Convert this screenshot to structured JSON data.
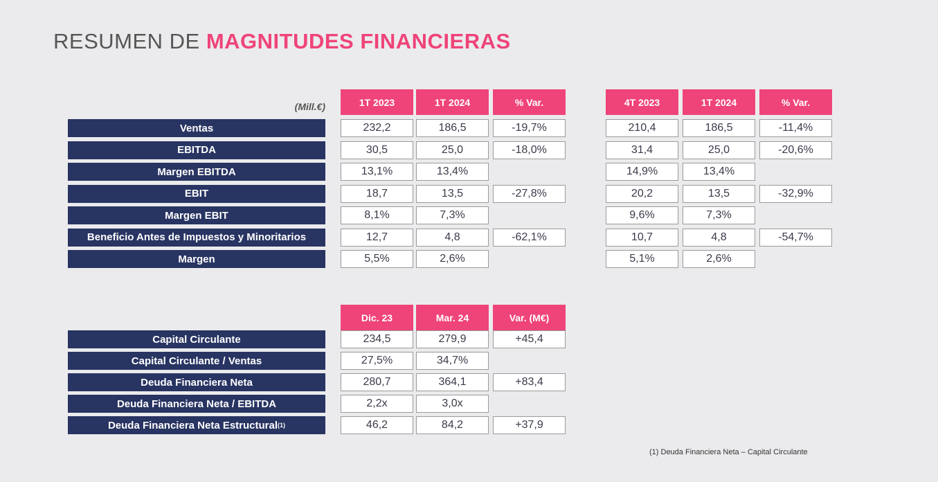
{
  "header": {
    "title_prefix": "RESUMEN DE",
    "title_highlight": "MAGNITUDES FINANCIERAS"
  },
  "table1": {
    "unit": "(Mill.€)",
    "columns": [
      "1T 2023",
      "1T 2024",
      "% Var.",
      "4T 2023",
      "1T 2024",
      "% Var."
    ],
    "rows": [
      {
        "label": "Ventas",
        "cells": [
          "232,2",
          "186,5",
          "-19,7%",
          "210,4",
          "186,5",
          "-11,4%"
        ]
      },
      {
        "label": "EBITDA",
        "cells": [
          "30,5",
          "25,0",
          "-18,0%",
          "31,4",
          "25,0",
          "-20,6%"
        ]
      },
      {
        "label": "Margen EBITDA",
        "cells": [
          "13,1%",
          "13,4%",
          null,
          "14,9%",
          "13,4%",
          null
        ]
      },
      {
        "label": "EBIT",
        "cells": [
          "18,7",
          "13,5",
          "-27,8%",
          "20,2",
          "13,5",
          "-32,9%"
        ]
      },
      {
        "label": "Margen EBIT",
        "cells": [
          "8,1%",
          "7,3%",
          null,
          "9,6%",
          "7,3%",
          null
        ]
      },
      {
        "label": "Beneficio Antes de Impuestos y Minoritarios",
        "cells": [
          "12,7",
          "4,8",
          "-62,1%",
          "10,7",
          "4,8",
          "-54,7%"
        ]
      },
      {
        "label": "Margen",
        "cells": [
          "5,5%",
          "2,6%",
          null,
          "5,1%",
          "2,6%",
          null
        ]
      }
    ]
  },
  "table2": {
    "columns": [
      "Dic. 23",
      "Mar. 24",
      "Var. (M€)"
    ],
    "rows": [
      {
        "label": "Capital Circulante",
        "cells": [
          "234,5",
          "279,9",
          "+45,4"
        ]
      },
      {
        "label": "Capital Circulante / Ventas",
        "cells": [
          "27,5%",
          "34,7%",
          null
        ]
      },
      {
        "label": "Deuda Financiera Neta",
        "cells": [
          "280,7",
          "364,1",
          "+83,4"
        ]
      },
      {
        "label": "Deuda Financiera Neta / EBITDA",
        "cells": [
          "2,2x",
          "3,0x",
          null
        ]
      },
      {
        "label": "Deuda Financiera Neta Estructural",
        "label_note": "(1)",
        "cells": [
          "46,2",
          "84,2",
          "+37,9"
        ]
      }
    ]
  },
  "footnote": "(1) Deuda Financiera Neta – Capital Circulante"
}
